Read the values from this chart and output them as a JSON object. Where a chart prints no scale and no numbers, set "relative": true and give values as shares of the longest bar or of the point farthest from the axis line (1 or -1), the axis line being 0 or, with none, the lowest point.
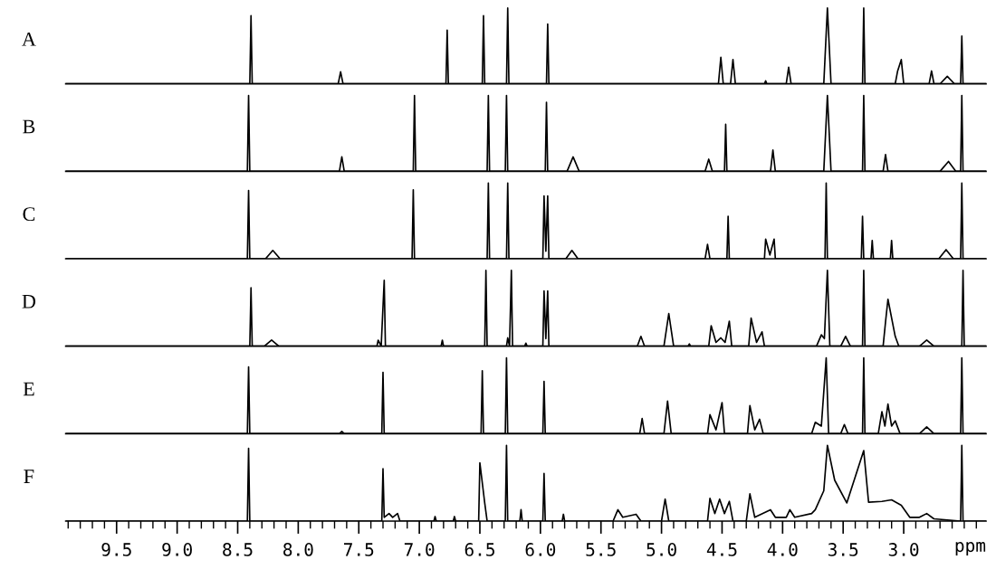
{
  "chart_data": [
    {
      "type": "line",
      "title": "A",
      "relative": true,
      "xlim": [
        9.92,
        2.32
      ],
      "tick_labels": false,
      "grid": false,
      "legend": false,
      "series": [
        {
          "color": "#000000",
          "x": [
            9.92,
            8.4,
            8.39,
            8.38,
            7.67,
            7.65,
            7.63,
            6.78,
            6.77,
            6.76,
            6.48,
            6.47,
            6.46,
            6.28,
            6.27,
            6.26,
            5.95,
            5.94,
            5.93,
            4.53,
            4.51,
            4.49,
            4.43,
            4.41,
            4.39,
            4.15,
            4.14,
            4.13,
            3.97,
            3.95,
            3.93,
            3.66,
            3.63,
            3.6,
            3.34,
            3.33,
            3.32,
            3.07,
            3.05,
            3.02,
            3.0,
            2.79,
            2.77,
            2.75,
            2.7,
            2.64,
            2.58,
            2.53,
            2.52,
            2.51,
            2.32
          ],
          "values": [
            0,
            0,
            0.9,
            0,
            0,
            0.16,
            0,
            0,
            0.71,
            0,
            0,
            0.9,
            0,
            0,
            1,
            0,
            0,
            0.79,
            0,
            0,
            0.35,
            0,
            0,
            0.32,
            0,
            0,
            0.04,
            0,
            0,
            0.22,
            0,
            0,
            1,
            0,
            0,
            1,
            0,
            0,
            0.17,
            0.32,
            0,
            0,
            0.17,
            0,
            0,
            0.1,
            0,
            0,
            0.63,
            0,
            0
          ]
        }
      ]
    },
    {
      "type": "line",
      "title": "B",
      "relative": true,
      "xlim": [
        9.92,
        2.32
      ],
      "tick_labels": false,
      "grid": false,
      "legend": false,
      "series": [
        {
          "color": "#000000",
          "x": [
            9.92,
            8.42,
            8.41,
            8.4,
            7.66,
            7.64,
            7.62,
            7.05,
            7.04,
            7.03,
            6.44,
            6.43,
            6.42,
            6.29,
            6.28,
            6.27,
            5.96,
            5.95,
            5.94,
            5.78,
            5.73,
            5.68,
            4.64,
            4.61,
            4.58,
            4.48,
            4.47,
            4.46,
            4.1,
            4.08,
            4.06,
            3.66,
            3.63,
            3.6,
            3.34,
            3.33,
            3.32,
            3.17,
            3.15,
            3.13,
            2.7,
            2.63,
            2.57,
            2.53,
            2.52,
            2.51,
            2.32
          ],
          "values": [
            0,
            0,
            1,
            0,
            0,
            0.19,
            0,
            0,
            1,
            0,
            0,
            1,
            0,
            0,
            1,
            0,
            0,
            0.91,
            0,
            0,
            0.19,
            0,
            0,
            0.16,
            0,
            0,
            0.62,
            0,
            0,
            0.28,
            0,
            0,
            1,
            0,
            0,
            1,
            0,
            0,
            0.22,
            0,
            0,
            0.13,
            0,
            0,
            1,
            0,
            0
          ]
        }
      ]
    },
    {
      "type": "line",
      "title": "C",
      "relative": true,
      "xlim": [
        9.92,
        2.32
      ],
      "tick_labels": false,
      "grid": false,
      "legend": false,
      "series": [
        {
          "color": "#000000",
          "x": [
            9.92,
            8.42,
            8.41,
            8.4,
            8.27,
            8.21,
            8.15,
            7.06,
            7.05,
            7.04,
            6.44,
            6.43,
            6.42,
            6.28,
            6.27,
            6.26,
            5.98,
            5.97,
            5.955,
            5.94,
            5.93,
            5.79,
            5.74,
            5.69,
            4.64,
            4.62,
            4.6,
            4.46,
            4.45,
            4.44,
            4.15,
            4.14,
            4.105,
            4.07,
            4.06,
            3.65,
            3.64,
            3.63,
            3.35,
            3.34,
            3.33,
            3.27,
            3.26,
            3.25,
            3.11,
            3.1,
            3.09,
            2.71,
            2.65,
            2.59,
            2.53,
            2.52,
            2.51,
            2.32
          ],
          "values": [
            0,
            0,
            0.9,
            0,
            0,
            0.11,
            0,
            0,
            0.91,
            0,
            0,
            1,
            0,
            0,
            1,
            0,
            0,
            0.83,
            0.1,
            0.83,
            0,
            0,
            0.11,
            0,
            0,
            0.19,
            0,
            0,
            0.56,
            0,
            0,
            0.26,
            0.05,
            0.26,
            0,
            0,
            1,
            0,
            0,
            0.56,
            0,
            0,
            0.24,
            0,
            0,
            0.24,
            0,
            0,
            0.12,
            0,
            0,
            1,
            0,
            0
          ]
        }
      ]
    },
    {
      "type": "line",
      "title": "D",
      "relative": true,
      "xlim": [
        9.92,
        2.32
      ],
      "tick_labels": false,
      "grid": false,
      "legend": false,
      "series": [
        {
          "color": "#000000",
          "x": [
            9.92,
            8.4,
            8.39,
            8.38,
            8.28,
            8.22,
            8.16,
            7.35,
            7.34,
            7.315,
            7.29,
            7.28,
            6.82,
            6.81,
            6.8,
            6.46,
            6.45,
            6.44,
            6.28,
            6.27,
            6.255,
            6.24,
            6.23,
            6.13,
            6.12,
            6.11,
            5.98,
            5.97,
            5.955,
            5.94,
            5.93,
            5.2,
            5.17,
            5.14,
            4.98,
            4.94,
            4.9,
            4.78,
            4.77,
            4.76,
            4.61,
            4.59,
            4.55,
            4.51,
            4.475,
            4.44,
            4.42,
            4.28,
            4.26,
            4.215,
            4.17,
            4.15,
            3.72,
            3.68,
            3.655,
            3.63,
            3.61,
            3.52,
            3.48,
            3.44,
            3.34,
            3.33,
            3.32,
            3.17,
            3.15,
            3.13,
            3.07,
            3.04,
            2.87,
            2.81,
            2.75,
            2.52,
            2.51,
            2.5,
            2.32
          ],
          "values": [
            0,
            0,
            0.77,
            0,
            0,
            0.08,
            0,
            0,
            0.08,
            0,
            0.87,
            0,
            0,
            0.08,
            0,
            0,
            1,
            0,
            0,
            0.11,
            0,
            1,
            0,
            0,
            0.04,
            0,
            0,
            0.73,
            0.1,
            0.73,
            0,
            0,
            0.13,
            0,
            0,
            0.43,
            0,
            0,
            0.03,
            0,
            0,
            0.27,
            0.05,
            0.11,
            0.05,
            0.33,
            0,
            0,
            0.37,
            0.05,
            0.19,
            0,
            0,
            0.15,
            0.1,
            1,
            0,
            0,
            0.13,
            0,
            0,
            1,
            0,
            0,
            0.32,
            0.62,
            0.13,
            0,
            0,
            0.08,
            0,
            0,
            1,
            0,
            0
          ]
        }
      ]
    },
    {
      "type": "line",
      "title": "E",
      "relative": true,
      "xlim": [
        9.92,
        2.32
      ],
      "tick_labels": false,
      "grid": false,
      "legend": false,
      "series": [
        {
          "color": "#000000",
          "x": [
            9.92,
            8.42,
            8.41,
            8.4,
            7.66,
            7.64,
            7.62,
            7.31,
            7.3,
            7.29,
            6.49,
            6.48,
            6.47,
            6.29,
            6.28,
            6.27,
            5.98,
            5.97,
            5.96,
            5.18,
            5.16,
            5.14,
            4.98,
            4.95,
            4.92,
            4.62,
            4.6,
            4.55,
            4.5,
            4.48,
            4.29,
            4.27,
            4.23,
            4.19,
            4.16,
            3.76,
            3.73,
            3.68,
            3.64,
            3.62,
            3.52,
            3.49,
            3.46,
            3.34,
            3.33,
            3.32,
            3.21,
            3.18,
            3.155,
            3.13,
            3.1,
            3.07,
            3.03,
            2.87,
            2.81,
            2.75,
            2.53,
            2.52,
            2.51,
            2.32
          ],
          "values": [
            0,
            0,
            0.88,
            0,
            0,
            0.03,
            0,
            0,
            0.81,
            0,
            0,
            0.83,
            0,
            0,
            1,
            0,
            0,
            0.69,
            0,
            0,
            0.2,
            0,
            0,
            0.43,
            0,
            0,
            0.25,
            0.05,
            0.41,
            0,
            0,
            0.37,
            0.05,
            0.19,
            0,
            0,
            0.15,
            0.1,
            1,
            0,
            0,
            0.12,
            0,
            0,
            1,
            0,
            0,
            0.29,
            0.1,
            0.39,
            0.1,
            0.17,
            0,
            0,
            0.09,
            0,
            0,
            1,
            0,
            0
          ]
        }
      ]
    },
    {
      "type": "line",
      "title": "F",
      "relative": true,
      "xlim": [
        9.92,
        2.32
      ],
      "xlabel": "ppm",
      "tick_labels": "x",
      "grid": false,
      "legend": false,
      "xticks": [
        {
          "value": 9.9,
          "label": null
        },
        {
          "value": 9.8,
          "label": null
        },
        {
          "value": 9.7,
          "label": null
        },
        {
          "value": 9.6,
          "label": null
        },
        {
          "value": 9.5,
          "label": "9.5"
        },
        {
          "value": 9.4,
          "label": null
        },
        {
          "value": 9.3,
          "label": null
        },
        {
          "value": 9.2,
          "label": null
        },
        {
          "value": 9.1,
          "label": null
        },
        {
          "value": 9.0,
          "label": "9.0"
        },
        {
          "value": 8.9,
          "label": null
        },
        {
          "value": 8.8,
          "label": null
        },
        {
          "value": 8.7,
          "label": null
        },
        {
          "value": 8.6,
          "label": null
        },
        {
          "value": 8.5,
          "label": "8.5"
        },
        {
          "value": 8.4,
          "label": null
        },
        {
          "value": 8.3,
          "label": null
        },
        {
          "value": 8.2,
          "label": null
        },
        {
          "value": 8.1,
          "label": null
        },
        {
          "value": 8.0,
          "label": "8.0"
        },
        {
          "value": 7.9,
          "label": null
        },
        {
          "value": 7.8,
          "label": null
        },
        {
          "value": 7.7,
          "label": null
        },
        {
          "value": 7.6,
          "label": null
        },
        {
          "value": 7.5,
          "label": "7.5"
        },
        {
          "value": 7.4,
          "label": null
        },
        {
          "value": 7.3,
          "label": null
        },
        {
          "value": 7.2,
          "label": null
        },
        {
          "value": 7.1,
          "label": null
        },
        {
          "value": 7.0,
          "label": "7.0"
        },
        {
          "value": 6.9,
          "label": null
        },
        {
          "value": 6.8,
          "label": null
        },
        {
          "value": 6.7,
          "label": null
        },
        {
          "value": 6.6,
          "label": null
        },
        {
          "value": 6.5,
          "label": "6.5"
        },
        {
          "value": 6.4,
          "label": null
        },
        {
          "value": 6.3,
          "label": null
        },
        {
          "value": 6.2,
          "label": null
        },
        {
          "value": 6.1,
          "label": null
        },
        {
          "value": 6.0,
          "label": "6.0"
        },
        {
          "value": 5.9,
          "label": null
        },
        {
          "value": 5.8,
          "label": null
        },
        {
          "value": 5.7,
          "label": null
        },
        {
          "value": 5.6,
          "label": null
        },
        {
          "value": 5.5,
          "label": "5.5"
        },
        {
          "value": 5.4,
          "label": null
        },
        {
          "value": 5.3,
          "label": null
        },
        {
          "value": 5.2,
          "label": null
        },
        {
          "value": 5.1,
          "label": null
        },
        {
          "value": 5.0,
          "label": "5.0"
        },
        {
          "value": 4.9,
          "label": null
        },
        {
          "value": 4.8,
          "label": null
        },
        {
          "value": 4.7,
          "label": null
        },
        {
          "value": 4.6,
          "label": null
        },
        {
          "value": 4.5,
          "label": "4.5"
        },
        {
          "value": 4.4,
          "label": null
        },
        {
          "value": 4.3,
          "label": null
        },
        {
          "value": 4.2,
          "label": null
        },
        {
          "value": 4.1,
          "label": null
        },
        {
          "value": 4.0,
          "label": "4.0"
        },
        {
          "value": 3.9,
          "label": null
        },
        {
          "value": 3.8,
          "label": null
        },
        {
          "value": 3.7,
          "label": null
        },
        {
          "value": 3.6,
          "label": null
        },
        {
          "value": 3.5,
          "label": "3.5"
        },
        {
          "value": 3.4,
          "label": null
        },
        {
          "value": 3.3,
          "label": null
        },
        {
          "value": 3.2,
          "label": null
        },
        {
          "value": 3.1,
          "label": null
        },
        {
          "value": 3.0,
          "label": "3.0"
        },
        {
          "value": 2.9,
          "label": null
        },
        {
          "value": 2.8,
          "label": null
        },
        {
          "value": 2.7,
          "label": null
        },
        {
          "value": 2.6,
          "label": null
        },
        {
          "value": 2.5,
          "label": null
        },
        {
          "value": 2.4,
          "label": null
        }
      ],
      "series": [
        {
          "color": "#000000",
          "x": [
            9.92,
            8.42,
            8.41,
            8.4,
            7.31,
            7.3,
            7.29,
            7.25,
            7.22,
            7.18,
            7.16,
            6.88,
            6.87,
            6.86,
            6.72,
            6.71,
            6.7,
            6.51,
            6.5,
            6.46,
            6.44,
            6.29,
            6.28,
            6.27,
            6.17,
            6.16,
            6.15,
            5.98,
            5.97,
            5.96,
            5.82,
            5.81,
            5.8,
            5.4,
            5.36,
            5.32,
            5.21,
            5.17,
            5.0,
            4.97,
            4.94,
            4.62,
            4.6,
            4.56,
            4.52,
            4.48,
            4.44,
            4.41,
            4.3,
            4.27,
            4.23,
            4.1,
            4.06,
            3.97,
            3.94,
            3.9,
            3.76,
            3.73,
            3.66,
            3.63,
            3.57,
            3.47,
            3.33,
            3.29,
            3.18,
            3.1,
            3.02,
            2.95,
            2.87,
            2.81,
            2.75,
            2.53,
            2.52,
            2.51,
            2.32
          ],
          "values": [
            0,
            0,
            0.96,
            0,
            0,
            0.69,
            0.05,
            0.1,
            0.05,
            0.1,
            0,
            0,
            0.06,
            0,
            0,
            0.06,
            0,
            0,
            0.77,
            0.24,
            0,
            0,
            1,
            0,
            0,
            0.15,
            0,
            0,
            0.63,
            0,
            0,
            0.09,
            0,
            0,
            0.15,
            0.05,
            0.09,
            0,
            0,
            0.29,
            0,
            0,
            0.3,
            0.1,
            0.29,
            0.1,
            0.26,
            0,
            0,
            0.36,
            0.05,
            0.15,
            0.05,
            0.05,
            0.15,
            0.05,
            0.1,
            0.15,
            0.4,
            1,
            0.54,
            0.24,
            0.93,
            0.25,
            0.26,
            0.28,
            0.21,
            0.05,
            0.05,
            0.1,
            0.03,
            0,
            1,
            0,
            0
          ]
        }
      ]
    }
  ]
}
